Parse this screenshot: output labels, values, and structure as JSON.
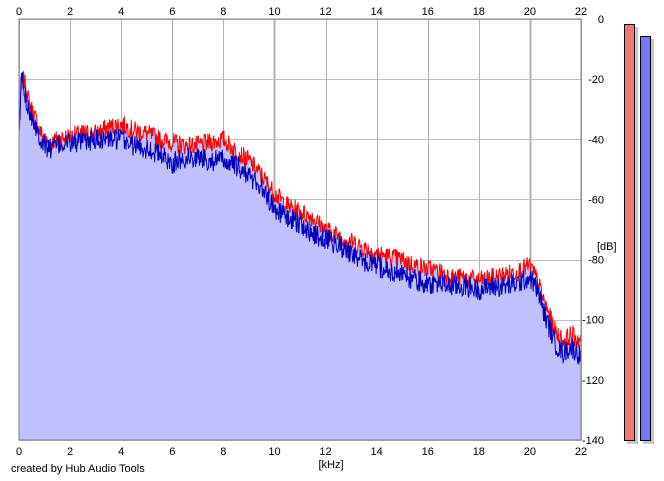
{
  "chart_data": {
    "type": "line",
    "title": "",
    "xlabel": "[kHz]",
    "ylabel": "[dB]",
    "xlim": [
      0,
      22
    ],
    "ylim": [
      -140,
      0
    ],
    "x_ticks": [
      "0",
      "2",
      "4",
      "6",
      "8",
      "10",
      "12",
      "14",
      "16",
      "18",
      "20",
      "22"
    ],
    "y_ticks": [
      "0",
      "-20",
      "-40",
      "-60",
      "-80",
      "-100",
      "-120",
      "-140"
    ],
    "grid": true,
    "x": [
      0,
      0.1,
      0.2,
      0.4,
      0.6,
      0.8,
      1,
      1.2,
      1.5,
      2,
      2.5,
      3,
      3.5,
      4,
      4.5,
      5,
      5.5,
      6,
      6.5,
      7,
      7.5,
      8,
      8.5,
      9,
      9.5,
      10,
      10.5,
      11,
      11.5,
      12,
      12.5,
      13,
      13.5,
      14,
      14.5,
      15,
      15.5,
      16,
      16.5,
      17,
      17.5,
      18,
      18.5,
      19,
      19.5,
      20,
      20.3,
      20.6,
      21,
      21.3,
      21.6,
      22
    ],
    "series": [
      {
        "color": "#ff0000",
        "values": [
          -38,
          -22,
          -20,
          -28,
          -32,
          -37,
          -40,
          -41,
          -40,
          -39,
          -38,
          -38,
          -36,
          -35,
          -37,
          -38,
          -40,
          -41,
          -42,
          -42,
          -41,
          -40,
          -44,
          -47,
          -52,
          -58,
          -62,
          -64,
          -66,
          -70,
          -72,
          -74,
          -76,
          -78,
          -79,
          -80,
          -82,
          -83,
          -84,
          -86,
          -86,
          -87,
          -86,
          -85,
          -84,
          -82,
          -87,
          -95,
          -104,
          -107,
          -105,
          -107
        ]
      },
      {
        "color": "#0000c0",
        "values": [
          -40,
          -18,
          -24,
          -30,
          -34,
          -39,
          -42,
          -43,
          -42,
          -41,
          -41,
          -40,
          -40,
          -40,
          -42,
          -43,
          -45,
          -48,
          -46,
          -46,
          -47,
          -47,
          -49,
          -52,
          -56,
          -63,
          -66,
          -68,
          -72,
          -73,
          -75,
          -78,
          -81,
          -82,
          -84,
          -85,
          -87,
          -88,
          -88,
          -89,
          -89,
          -90,
          -89,
          -89,
          -88,
          -86,
          -90,
          -99,
          -108,
          -111,
          -109,
          -112
        ]
      }
    ],
    "meters": [
      {
        "color": "#f07878",
        "level_db": -1.5
      },
      {
        "color": "#7878f0",
        "level_db": -5
      }
    ]
  },
  "credit": "created by Hub Audio Tools"
}
